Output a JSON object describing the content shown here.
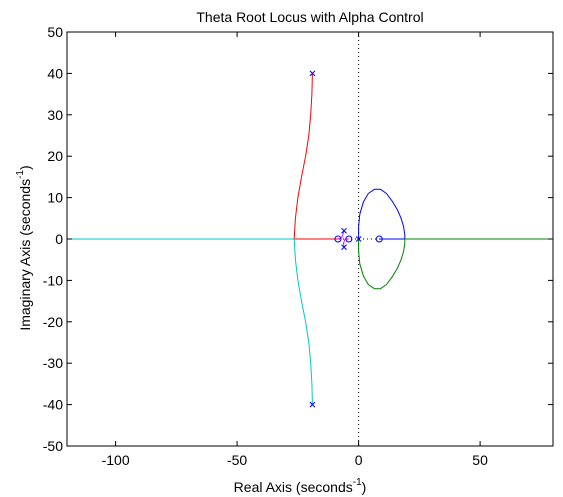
{
  "chart_data": {
    "type": "line",
    "title": "Theta Root Locus with Alpha Control",
    "xlabel": "Real Axis (seconds",
    "xlabel_sup": "-1",
    "xlabel_tail": ")",
    "ylabel": "Imaginary Axis (seconds",
    "ylabel_sup": "-1",
    "ylabel_tail": ")",
    "xlim": [
      -120,
      80
    ],
    "ylim": [
      -50,
      50
    ],
    "xticks": [
      -100,
      -50,
      0,
      50
    ],
    "yticks": [
      -50,
      -40,
      -30,
      -20,
      -10,
      0,
      10,
      20,
      30,
      40,
      50
    ],
    "grid": false,
    "poles": [
      {
        "x": -19,
        "y": 40
      },
      {
        "x": -19,
        "y": -40
      },
      {
        "x": -6,
        "y": 2
      },
      {
        "x": -6,
        "y": -2
      },
      {
        "x": 0,
        "y": 0
      }
    ],
    "zeros": [
      {
        "x": -8.5,
        "y": 0
      },
      {
        "x": -4,
        "y": 0
      },
      {
        "x": 8.5,
        "y": 0
      }
    ],
    "series": [
      {
        "color": "#ff0000",
        "points": [
          [
            -19,
            40
          ],
          [
            -19.2,
            35
          ],
          [
            -19.7,
            30
          ],
          [
            -20.5,
            25
          ],
          [
            -21.8,
            20
          ],
          [
            -23.5,
            15
          ],
          [
            -25,
            10
          ],
          [
            -26,
            5
          ],
          [
            -26.5,
            0
          ],
          [
            -20,
            0
          ],
          [
            -15,
            0
          ],
          [
            -10,
            0
          ],
          [
            -8.5,
            0
          ]
        ]
      },
      {
        "color": "#00c8c8",
        "points": [
          [
            -19,
            -40
          ],
          [
            -19.2,
            -35
          ],
          [
            -19.7,
            -30
          ],
          [
            -20.5,
            -25
          ],
          [
            -21.8,
            -20
          ],
          [
            -23.5,
            -15
          ],
          [
            -25,
            -10
          ],
          [
            -26,
            -5
          ],
          [
            -26.5,
            0
          ],
          [
            -40,
            0
          ],
          [
            -60,
            0
          ],
          [
            -80,
            0
          ],
          [
            -100,
            0
          ],
          [
            -120,
            0
          ]
        ]
      },
      {
        "color": "#0000ff",
        "points": [
          [
            0,
            0
          ],
          [
            0,
            3
          ],
          [
            0.5,
            6
          ],
          [
            2,
            9
          ],
          [
            4,
            11
          ],
          [
            6.5,
            12
          ],
          [
            9,
            12
          ],
          [
            11.5,
            11
          ],
          [
            14,
            9
          ],
          [
            16,
            7
          ],
          [
            17.5,
            5
          ],
          [
            18.5,
            3
          ],
          [
            19,
            1
          ],
          [
            19,
            0
          ],
          [
            17,
            0
          ],
          [
            15,
            0
          ],
          [
            13,
            0
          ],
          [
            11,
            0
          ],
          [
            8.5,
            0
          ]
        ]
      },
      {
        "color": "#008000",
        "points": [
          [
            0,
            0
          ],
          [
            0,
            -3
          ],
          [
            0.5,
            -6
          ],
          [
            2,
            -9
          ],
          [
            4,
            -11
          ],
          [
            6.5,
            -12
          ],
          [
            9,
            -12
          ],
          [
            11.5,
            -11
          ],
          [
            14,
            -9
          ],
          [
            16,
            -7
          ],
          [
            17.5,
            -5
          ],
          [
            18.5,
            -3
          ],
          [
            19,
            -1
          ],
          [
            19,
            0
          ],
          [
            30,
            0
          ],
          [
            45,
            0
          ],
          [
            60,
            0
          ],
          [
            80,
            0
          ]
        ]
      },
      {
        "color": "#ff00ff",
        "points": [
          [
            -6,
            2
          ],
          [
            -6.5,
            1
          ],
          [
            -7,
            0.3
          ],
          [
            -8.5,
            0
          ]
        ]
      },
      {
        "color": "#ff00ff",
        "points": [
          [
            -6,
            -2
          ],
          [
            -6.2,
            -1
          ],
          [
            -5.5,
            0
          ],
          [
            -4,
            0
          ]
        ]
      }
    ],
    "dotted_lines": [
      {
        "orientation": "vertical",
        "value": 0
      },
      {
        "orientation": "horizontal",
        "value": 0
      }
    ],
    "marker_color": "#0000ff"
  }
}
